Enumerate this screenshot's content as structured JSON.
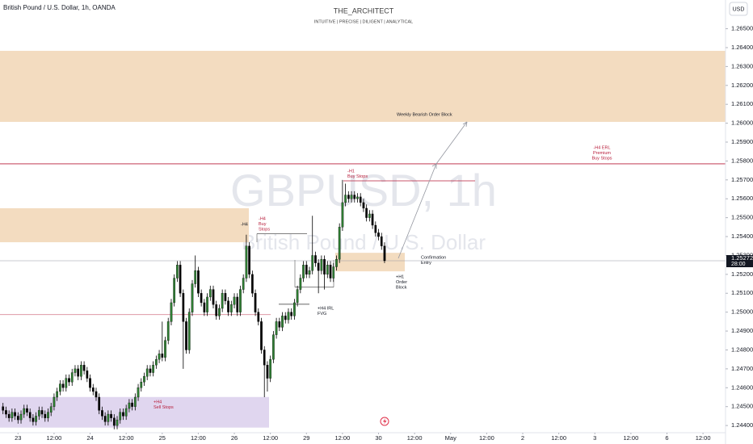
{
  "chart_data": {
    "type": "candlestick",
    "symbol_title": "British Pound / U.S. Dollar, 1h, OANDA",
    "title": "THE_ARCHITECT",
    "subtitle": "INTUITIVE | PRECISE | DILIGENT | ANALYTICAL",
    "currency_button": "USD",
    "watermark": "GBPUSD, 1h",
    "watermark_sub": "British Pound / U.S. Dollar",
    "up_color": "#2e7d32",
    "down_color": "#000000",
    "grid": false,
    "open": [
      1.245,
      1.2448,
      1.2446,
      1.2444,
      1.2447,
      1.2445,
      1.2443,
      1.2446,
      1.2449,
      1.2447,
      1.2444,
      1.2442,
      1.2445,
      1.2448,
      1.2446,
      1.2444,
      1.2447,
      1.245,
      1.2455,
      1.2458,
      1.2462,
      1.246,
      1.2465,
      1.2463,
      1.2468,
      1.247,
      1.2466,
      1.2472,
      1.2469,
      1.2465,
      1.246,
      1.2458,
      1.2455,
      1.2448,
      1.2445,
      1.2442,
      1.2446,
      1.2444,
      1.244,
      1.2443,
      1.2447,
      1.2445,
      1.2449,
      1.2452,
      1.245,
      1.2455,
      1.246,
      1.2463,
      1.2466,
      1.247,
      1.2468,
      1.2472,
      1.2475,
      1.2478,
      1.2476,
      1.2485,
      1.2495,
      1.2505,
      1.2518,
      1.2525,
      1.251,
      1.2495,
      1.248,
      1.25,
      1.2515,
      1.2522,
      1.251,
      1.2505,
      1.25,
      1.2508,
      1.2512,
      1.2504,
      1.2498,
      1.2502,
      1.251,
      1.2506,
      1.25,
      1.2504,
      1.2508,
      1.25,
      1.2512,
      1.2518,
      1.2535,
      1.252,
      1.251,
      1.25,
      1.2495,
      1.248,
      1.2472,
      1.2465,
      1.2475,
      1.2488,
      1.2495,
      1.2492,
      1.2498,
      1.2496,
      1.25,
      1.2498,
      1.2505,
      1.2512,
      1.2518,
      1.2525,
      1.252,
      1.2522,
      1.253,
      1.2526,
      1.2522,
      1.2528,
      1.252,
      1.2525,
      1.2518,
      1.2524,
      1.2528,
      1.2545,
      1.2558,
      1.2562,
      1.256,
      1.2562,
      1.256,
      1.2561,
      1.2558,
      1.2555,
      1.255,
      1.2552,
      1.2546,
      1.2542,
      1.254,
      1.2535
    ],
    "high": [
      1.2452,
      1.245,
      1.2448,
      1.2449,
      1.2449,
      1.2447,
      1.2448,
      1.2451,
      1.2451,
      1.2449,
      1.2446,
      1.2447,
      1.245,
      1.245,
      1.2448,
      1.2449,
      1.2452,
      1.2457,
      1.246,
      1.2464,
      1.2464,
      1.2467,
      1.2467,
      1.247,
      1.2472,
      1.2472,
      1.2474,
      1.2474,
      1.2471,
      1.2467,
      1.2462,
      1.246,
      1.2457,
      1.245,
      1.2447,
      1.2448,
      1.2448,
      1.2446,
      1.2445,
      1.2449,
      1.2449,
      1.2451,
      1.2454,
      1.2454,
      1.2457,
      1.2462,
      1.2465,
      1.2468,
      1.2472,
      1.2472,
      1.2474,
      1.2477,
      1.248,
      1.2495,
      1.2487,
      1.2497,
      1.2507,
      1.252,
      1.2527,
      1.2527,
      1.2512,
      1.2497,
      1.2502,
      1.2517,
      1.253,
      1.2524,
      1.2512,
      1.2507,
      1.251,
      1.2514,
      1.2514,
      1.2506,
      1.2504,
      1.2512,
      1.2512,
      1.2508,
      1.2506,
      1.251,
      1.251,
      1.2514,
      1.252,
      1.2541,
      1.2537,
      1.2522,
      1.2512,
      1.2502,
      1.2497,
      1.2482,
      1.2474,
      1.2477,
      1.249,
      1.2497,
      1.2497,
      1.25,
      1.25,
      1.2502,
      1.2502,
      1.2507,
      1.2514,
      1.252,
      1.2527,
      1.2527,
      1.2524,
      1.2551,
      1.2532,
      1.2528,
      1.253,
      1.253,
      1.2527,
      1.2527,
      1.2526,
      1.253,
      1.2547,
      1.257,
      1.2568,
      1.2564,
      1.2564,
      1.2564,
      1.2563,
      1.2563,
      1.256,
      1.2557,
      1.2554,
      1.2554,
      1.2548,
      1.2544,
      1.2542,
      1.2537
    ],
    "low": [
      1.2446,
      1.2444,
      1.2442,
      1.2442,
      1.2443,
      1.2441,
      1.2441,
      1.2444,
      1.2445,
      1.2442,
      1.244,
      1.244,
      1.2443,
      1.2444,
      1.2442,
      1.2442,
      1.2445,
      1.2448,
      1.2453,
      1.2456,
      1.2458,
      1.2458,
      1.2461,
      1.2461,
      1.2466,
      1.2464,
      1.2464,
      1.2467,
      1.2463,
      1.2458,
      1.2456,
      1.2453,
      1.2446,
      1.2443,
      1.244,
      1.244,
      1.2442,
      1.2438,
      1.2438,
      1.2441,
      1.2443,
      1.2443,
      1.2447,
      1.2448,
      1.2448,
      1.2453,
      1.2458,
      1.2461,
      1.2464,
      1.2466,
      1.2466,
      1.247,
      1.2473,
      1.2474,
      1.2474,
      1.2483,
      1.2493,
      1.2503,
      1.2516,
      1.2508,
      1.247,
      1.2478,
      1.2478,
      1.2498,
      1.2513,
      1.2508,
      1.2503,
      1.2498,
      1.2498,
      1.2506,
      1.2502,
      1.2496,
      1.2496,
      1.25,
      1.2504,
      1.2498,
      1.2498,
      1.2502,
      1.2498,
      1.2498,
      1.251,
      1.2516,
      1.2518,
      1.2508,
      1.2498,
      1.2493,
      1.2478,
      1.2455,
      1.2458,
      1.2463,
      1.2473,
      1.2486,
      1.249,
      1.249,
      1.2494,
      1.2494,
      1.2496,
      1.2496,
      1.2503,
      1.251,
      1.2516,
      1.2518,
      1.2518,
      1.252,
      1.2524,
      1.251,
      1.252,
      1.2512,
      1.2518,
      1.2516,
      1.2516,
      1.2522,
      1.2526,
      1.2543,
      1.2556,
      1.2558,
      1.2558,
      1.2558,
      1.2558,
      1.2556,
      1.2553,
      1.2548,
      1.2548,
      1.2544,
      1.254,
      1.2538,
      1.2533,
      1.2526
    ],
    "close": [
      1.2448,
      1.2446,
      1.2444,
      1.2447,
      1.2445,
      1.2443,
      1.2446,
      1.2449,
      1.2447,
      1.2444,
      1.2442,
      1.2445,
      1.2448,
      1.2446,
      1.2444,
      1.2447,
      1.245,
      1.2455,
      1.2458,
      1.2462,
      1.246,
      1.2465,
      1.2463,
      1.2468,
      1.247,
      1.2466,
      1.2472,
      1.2469,
      1.2465,
      1.246,
      1.2458,
      1.2455,
      1.2448,
      1.2445,
      1.2442,
      1.2446,
      1.2444,
      1.244,
      1.2443,
      1.2447,
      1.2445,
      1.2449,
      1.2452,
      1.245,
      1.2455,
      1.246,
      1.2463,
      1.2466,
      1.247,
      1.2468,
      1.2472,
      1.2475,
      1.2478,
      1.2476,
      1.2485,
      1.2495,
      1.2505,
      1.2518,
      1.2525,
      1.251,
      1.2495,
      1.248,
      1.25,
      1.2515,
      1.2522,
      1.251,
      1.2505,
      1.25,
      1.2508,
      1.2512,
      1.2504,
      1.2498,
      1.2502,
      1.251,
      1.2506,
      1.25,
      1.2504,
      1.2508,
      1.25,
      1.2512,
      1.2518,
      1.2535,
      1.252,
      1.251,
      1.25,
      1.2495,
      1.248,
      1.2472,
      1.2465,
      1.2475,
      1.2488,
      1.2495,
      1.2492,
      1.2498,
      1.2496,
      1.25,
      1.2498,
      1.2505,
      1.2512,
      1.2518,
      1.2525,
      1.252,
      1.2522,
      1.253,
      1.2526,
      1.2522,
      1.2528,
      1.252,
      1.2525,
      1.2518,
      1.2524,
      1.2528,
      1.2545,
      1.2558,
      1.2562,
      1.256,
      1.2562,
      1.256,
      1.2561,
      1.2558,
      1.2555,
      1.255,
      1.2552,
      1.2546,
      1.2542,
      1.254,
      1.2535,
      1.25272
    ],
    "xlim": [
      -1,
      240.5
    ],
    "xticks": [
      {
        "value": 5,
        "label": "23"
      },
      {
        "value": 17,
        "label": "12:00"
      },
      {
        "value": 29,
        "label": "24"
      },
      {
        "value": 41,
        "label": "12:00"
      },
      {
        "value": 53,
        "label": "25"
      },
      {
        "value": 65,
        "label": "12:00"
      },
      {
        "value": 77,
        "label": "26"
      },
      {
        "value": 89,
        "label": "12:00"
      },
      {
        "value": 101,
        "label": "29"
      },
      {
        "value": 113,
        "label": "12:00"
      },
      {
        "value": 125,
        "label": "30"
      },
      {
        "value": 137,
        "label": "12:00"
      },
      {
        "value": 149,
        "label": "May"
      },
      {
        "value": 161,
        "label": "12:00"
      },
      {
        "value": 173,
        "label": "2"
      },
      {
        "value": 185,
        "label": "12:00"
      },
      {
        "value": 197,
        "label": "3"
      },
      {
        "value": 209,
        "label": "12:00"
      },
      {
        "value": 221,
        "label": "6"
      },
      {
        "value": 233,
        "label": "12:00"
      }
    ],
    "ylim": [
      1.24362,
      1.26652
    ],
    "yticks": [
      {
        "value": 1.244,
        "label": "1.24400"
      },
      {
        "value": 1.245,
        "label": "1.24500"
      },
      {
        "value": 1.246,
        "label": "1.24600"
      },
      {
        "value": 1.247,
        "label": "1.24700"
      },
      {
        "value": 1.248,
        "label": "1.24800"
      },
      {
        "value": 1.249,
        "label": "1.24900"
      },
      {
        "value": 1.25,
        "label": "1.25000"
      },
      {
        "value": 1.251,
        "label": "1.25100"
      },
      {
        "value": 1.252,
        "label": "1.25200"
      },
      {
        "value": 1.253,
        "label": "1.25300"
      },
      {
        "value": 1.254,
        "label": "1.25400"
      },
      {
        "value": 1.255,
        "label": "1.25500"
      },
      {
        "value": 1.256,
        "label": "1.25600"
      },
      {
        "value": 1.257,
        "label": "1.25700"
      },
      {
        "value": 1.258,
        "label": "1.25800"
      },
      {
        "value": 1.259,
        "label": "1.25900"
      },
      {
        "value": 1.26,
        "label": "1.26000"
      },
      {
        "value": 1.261,
        "label": "1.26100"
      },
      {
        "value": 1.262,
        "label": "1.26200"
      },
      {
        "value": 1.263,
        "label": "1.26300"
      },
      {
        "value": 1.264,
        "label": "1.26400"
      },
      {
        "value": 1.265,
        "label": "1.26500"
      }
    ],
    "last_price": {
      "value": 1.25272,
      "label": "1.25272"
    },
    "countdown": "28:00",
    "zones": [
      {
        "low": 1.26007,
        "high": 1.26383,
        "color": "#f3dcc0",
        "label": [
          "Weekly Bearish Order Block"
        ]
      },
      {
        "low": 1.2537,
        "high": 1.2555,
        "color": "#f3dcc0",
        "label": [
          "-H4"
        ]
      },
      {
        "low": 1.24389,
        "high": 1.24551,
        "color": "#e0d6ef",
        "label": [
          "+H4",
          "Sell Stops"
        ]
      },
      {
        "low": 1.25216,
        "high": 1.25314,
        "color": "#f3dcc0",
        "label": [
          "+H1",
          "Order",
          "Block"
        ]
      }
    ],
    "levels": [
      {
        "value": 1.25785,
        "color": "#b71c3a",
        "label": [
          "-H4 ERL",
          "Premium",
          "Buy Stops"
        ]
      },
      {
        "value": 1.25695,
        "color": "#b71c3a",
        "label": [
          "-H1",
          "Buy Stops"
        ]
      },
      {
        "value": 1.24987,
        "color": "#d98a98",
        "label": []
      },
      {
        "value": 1.25415,
        "color": "#555555",
        "label": [
          "-H4",
          "Buy",
          "Stops"
        ]
      },
      {
        "value": 1.25042,
        "color": "#333333",
        "label": [
          "+H4 IRL",
          "FVG"
        ]
      },
      {
        "value": 1.25132,
        "color": "#555555",
        "label": [
          "Confirmation",
          "Entry"
        ]
      }
    ]
  }
}
